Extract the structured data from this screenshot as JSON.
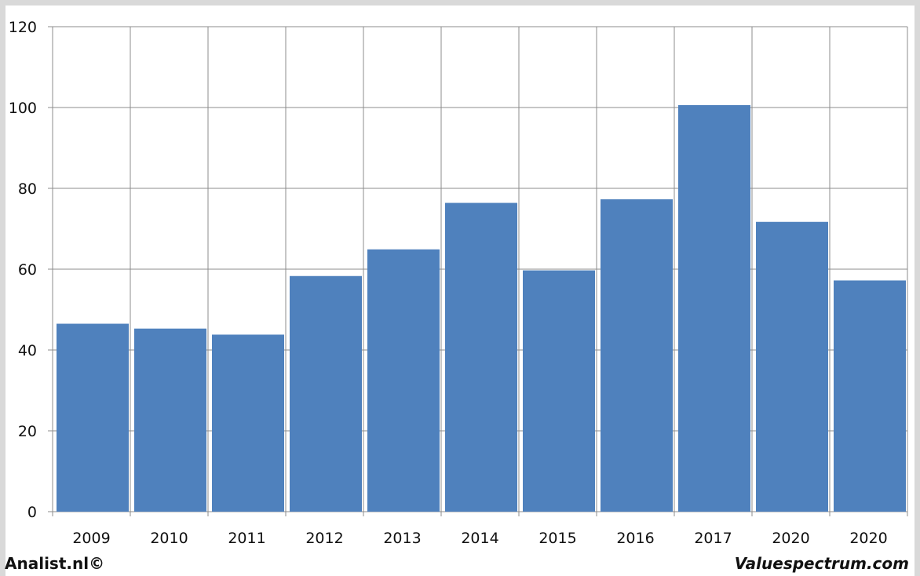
{
  "chart_data": {
    "type": "bar",
    "categories": [
      "2009",
      "2010",
      "2011",
      "2012",
      "2013",
      "2014",
      "2015",
      "2016",
      "2017",
      "2020",
      "2020"
    ],
    "values": [
      46.5,
      45.3,
      43.8,
      58.3,
      64.9,
      76.4,
      59.7,
      77.3,
      100.6,
      71.7,
      57.2
    ],
    "title": "",
    "xlabel": "",
    "ylabel": "",
    "ylim": [
      0,
      120
    ],
    "yticks": [
      0,
      20,
      40,
      60,
      80,
      100,
      120
    ],
    "grid": true,
    "bar_color": "#4f81bd"
  },
  "footer": {
    "left": "Analist.nl©",
    "right": "Valuespectrum.com"
  }
}
